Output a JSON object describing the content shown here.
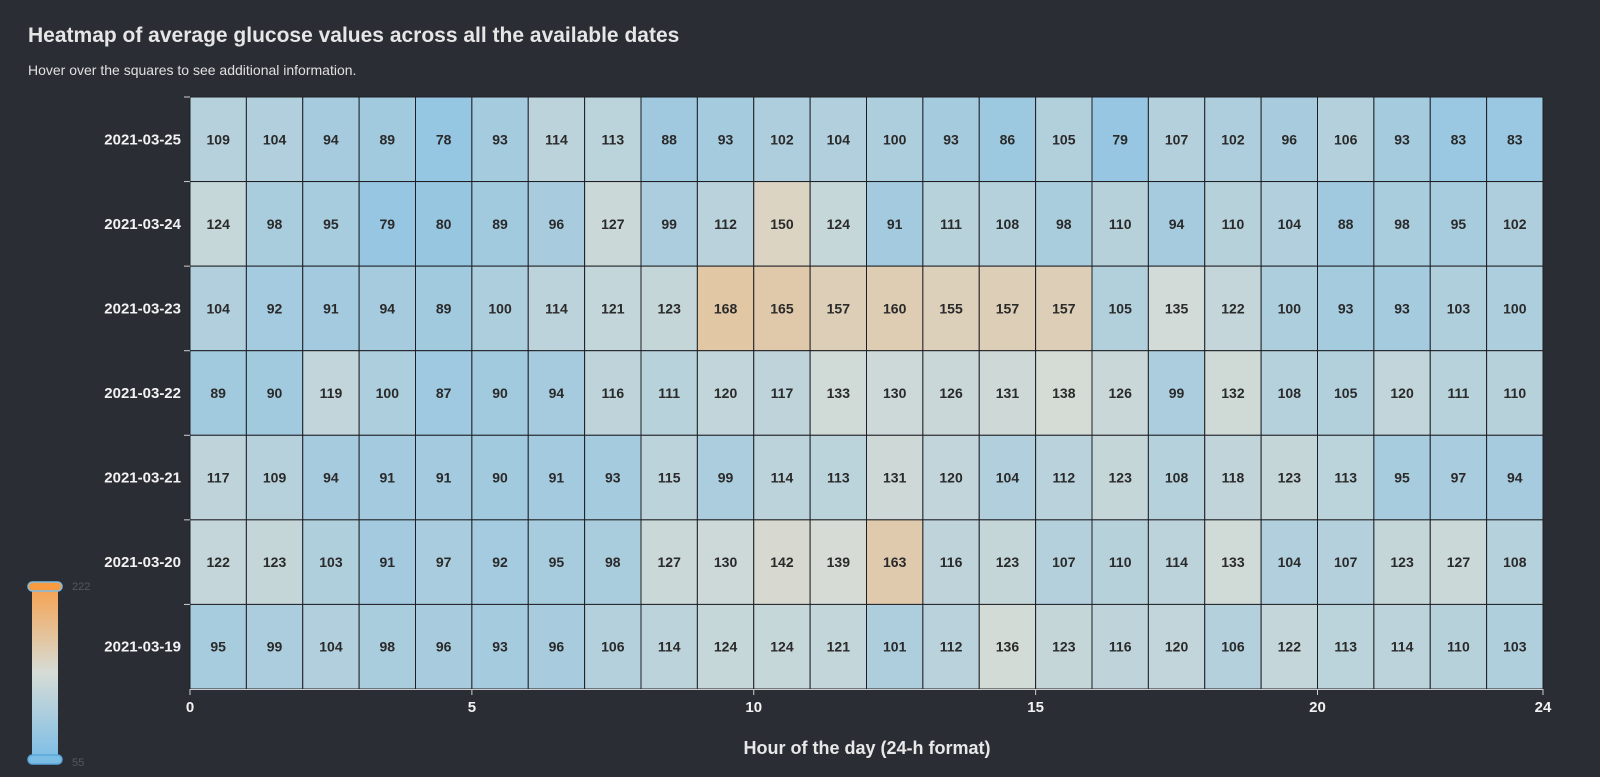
{
  "header": {
    "title": "Heatmap of average glucose values across all the available dates",
    "subtitle": "Hover over the squares to see additional information."
  },
  "colors": {
    "low": "#7cbde6",
    "mid": "#d6dcd6",
    "high": "#f7a04c",
    "background": "#2b2d35"
  },
  "chart_data": {
    "type": "heatmap",
    "title": "Heatmap of average glucose values across all the available dates",
    "subtitle": "Hover over the squares to see additional information.",
    "xlabel": "Hour of the day (24-h format)",
    "ylabel": "",
    "xlim": [
      0,
      24
    ],
    "x_ticks": [
      0,
      5,
      10,
      15,
      20,
      24
    ],
    "x": [
      0,
      1,
      2,
      3,
      4,
      5,
      6,
      7,
      8,
      9,
      10,
      11,
      12,
      13,
      14,
      15,
      16,
      17,
      18,
      19,
      20,
      21,
      22,
      23
    ],
    "y": [
      "2021-03-25",
      "2021-03-24",
      "2021-03-23",
      "2021-03-22",
      "2021-03-21",
      "2021-03-20",
      "2021-03-19"
    ],
    "values": [
      [
        109,
        104,
        94,
        89,
        78,
        93,
        114,
        113,
        88,
        93,
        102,
        104,
        100,
        93,
        86,
        105,
        79,
        107,
        102,
        96,
        106,
        93,
        83,
        83
      ],
      [
        124,
        98,
        95,
        79,
        80,
        89,
        96,
        127,
        99,
        112,
        150,
        124,
        91,
        111,
        108,
        98,
        110,
        94,
        110,
        104,
        88,
        98,
        95,
        102
      ],
      [
        104,
        92,
        91,
        94,
        89,
        100,
        114,
        121,
        123,
        168,
        165,
        157,
        160,
        155,
        157,
        157,
        105,
        135,
        122,
        100,
        93,
        93,
        103,
        100
      ],
      [
        89,
        90,
        119,
        100,
        87,
        90,
        94,
        116,
        111,
        120,
        117,
        133,
        130,
        126,
        131,
        138,
        126,
        99,
        132,
        108,
        105,
        120,
        111,
        110
      ],
      [
        117,
        109,
        94,
        91,
        91,
        90,
        91,
        93,
        115,
        99,
        114,
        113,
        131,
        120,
        104,
        112,
        123,
        108,
        118,
        123,
        113,
        95,
        97,
        94
      ],
      [
        122,
        123,
        103,
        91,
        97,
        92,
        95,
        98,
        127,
        130,
        142,
        139,
        163,
        116,
        123,
        107,
        110,
        114,
        133,
        104,
        107,
        123,
        127,
        108
      ],
      [
        95,
        99,
        104,
        98,
        96,
        93,
        96,
        106,
        114,
        124,
        124,
        121,
        101,
        112,
        136,
        123,
        116,
        120,
        106,
        122,
        113,
        114,
        110,
        103
      ]
    ],
    "color_scale": {
      "min": 55,
      "max": 222
    },
    "legend": {
      "placement": "bottom-left",
      "orientation": "vertical",
      "min_label": "55",
      "max_label": "222"
    },
    "grid": true
  }
}
